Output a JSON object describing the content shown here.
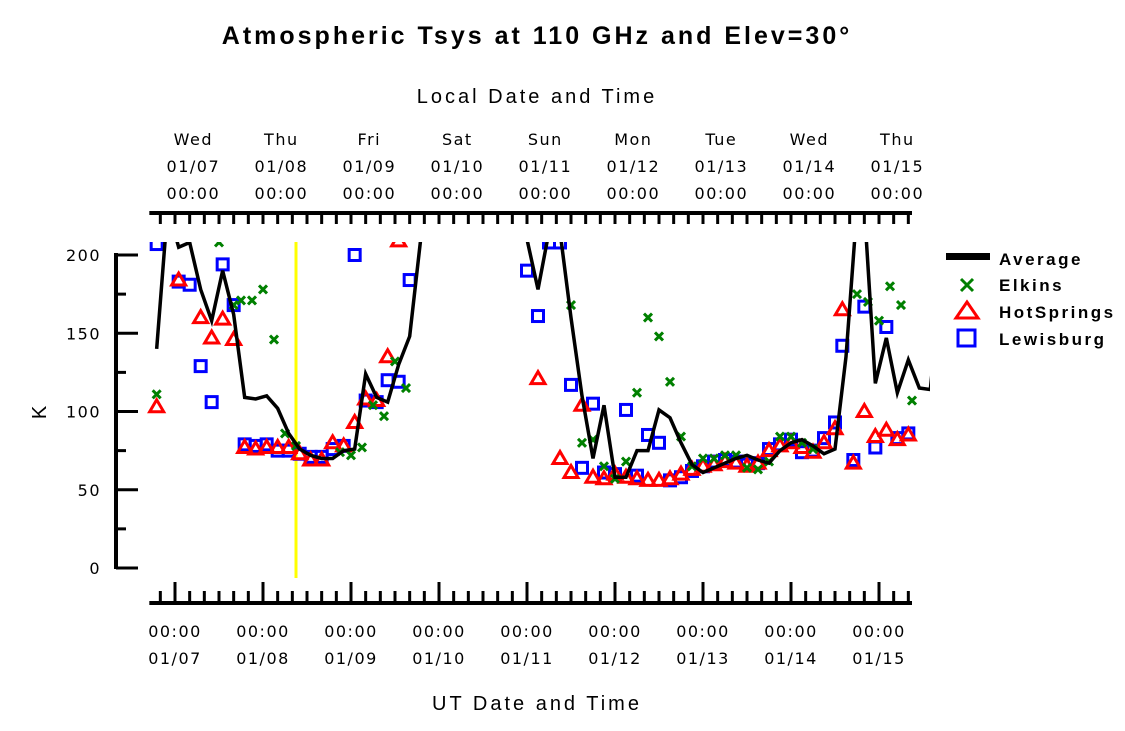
{
  "chart_data": {
    "type": "line",
    "title": "Atmospheric Tsys at 110 GHz and Elev=30°",
    "top_axis_label": "Local Date and Time",
    "xlabel": "UT Date and Time",
    "ylabel": "K",
    "ylim": [
      0,
      200
    ],
    "y_ticks": [
      "0",
      "50",
      "100",
      "150",
      "200"
    ],
    "x_unit": "hours since UT 01/07 00:00",
    "xlim": [
      -6,
      198
    ],
    "local_offset_hours": -5,
    "marker_time_hours": 33,
    "marker_color": "#ffff00",
    "top_ticks": [
      {
        "day": "Wed",
        "date": "01/07",
        "time": "00:00"
      },
      {
        "day": "Thu",
        "date": "01/08",
        "time": "00:00"
      },
      {
        "day": "Fri",
        "date": "01/09",
        "time": "00:00"
      },
      {
        "day": "Sat",
        "date": "01/10",
        "time": "00:00"
      },
      {
        "day": "Sun",
        "date": "01/11",
        "time": "00:00"
      },
      {
        "day": "Mon",
        "date": "01/12",
        "time": "00:00"
      },
      {
        "day": "Tue",
        "date": "01/13",
        "time": "00:00"
      },
      {
        "day": "Wed",
        "date": "01/14",
        "time": "00:00"
      },
      {
        "day": "Thu",
        "date": "01/15",
        "time": "00:00"
      }
    ],
    "bottom_ticks": [
      {
        "time": "00:00",
        "date": "01/07"
      },
      {
        "time": "00:00",
        "date": "01/08"
      },
      {
        "time": "00:00",
        "date": "01/09"
      },
      {
        "time": "00:00",
        "date": "01/10"
      },
      {
        "time": "00:00",
        "date": "01/11"
      },
      {
        "time": "00:00",
        "date": "01/12"
      },
      {
        "time": "00:00",
        "date": "01/13"
      },
      {
        "time": "00:00",
        "date": "01/14"
      },
      {
        "time": "00:00",
        "date": "01/15"
      }
    ],
    "legend_position": "right",
    "series": [
      {
        "name": "Average",
        "marker": "line",
        "color": "#000000",
        "points": [
          [
            -5,
            140
          ],
          [
            -2,
            230
          ],
          [
            1,
            205
          ],
          [
            4,
            208
          ],
          [
            7,
            178
          ],
          [
            10,
            158
          ],
          [
            13,
            190
          ],
          [
            16,
            162
          ],
          [
            19,
            109
          ],
          [
            22,
            108
          ],
          [
            25,
            110
          ],
          [
            28,
            102
          ],
          [
            31,
            86
          ],
          [
            34,
            76
          ],
          [
            37,
            72
          ],
          [
            40,
            70
          ],
          [
            43,
            70
          ],
          [
            46,
            75
          ],
          [
            49,
            76
          ],
          [
            52,
            124
          ],
          [
            55,
            109
          ],
          [
            58,
            106
          ],
          [
            61,
            130
          ],
          [
            64,
            148
          ],
          [
            67,
            210
          ],
          [
            96,
            210
          ],
          [
            99,
            178
          ],
          [
            102,
            215
          ],
          [
            105,
            215
          ],
          [
            108,
            160
          ],
          [
            111,
            110
          ],
          [
            114,
            70
          ],
          [
            117,
            104
          ],
          [
            120,
            58
          ],
          [
            123,
            58
          ],
          [
            126,
            75
          ],
          [
            129,
            75
          ],
          [
            132,
            101
          ],
          [
            135,
            96
          ],
          [
            138,
            80
          ],
          [
            141,
            66
          ],
          [
            144,
            61
          ],
          [
            147,
            64
          ],
          [
            150,
            67
          ],
          [
            153,
            70
          ],
          [
            156,
            72
          ],
          [
            159,
            69
          ],
          [
            162,
            67
          ],
          [
            165,
            75
          ],
          [
            168,
            80
          ],
          [
            171,
            82
          ],
          [
            174,
            78
          ],
          [
            177,
            73
          ],
          [
            180,
            76
          ],
          [
            183,
            135
          ],
          [
            186,
            230
          ],
          [
            188,
            230
          ],
          [
            191,
            118
          ],
          [
            194,
            147
          ],
          [
            197,
            112
          ],
          [
            200,
            133
          ],
          [
            203,
            115
          ],
          [
            206,
            114
          ],
          [
            209,
            185
          ]
        ]
      },
      {
        "name": "Elkins",
        "marker": "x",
        "color": "#008000",
        "points": [
          [
            -5,
            111
          ],
          [
            12,
            208
          ],
          [
            16,
            168
          ],
          [
            18,
            171
          ],
          [
            21,
            171
          ],
          [
            24,
            178
          ],
          [
            27,
            146
          ],
          [
            30,
            86
          ],
          [
            33,
            78
          ],
          [
            45,
            74
          ],
          [
            48,
            72
          ],
          [
            51,
            77
          ],
          [
            54,
            104
          ],
          [
            57,
            97
          ],
          [
            60,
            132
          ],
          [
            63,
            115
          ],
          [
            108,
            168
          ],
          [
            111,
            80
          ],
          [
            114,
            82
          ],
          [
            117,
            65
          ],
          [
            120,
            57
          ],
          [
            123,
            68
          ],
          [
            126,
            112
          ],
          [
            129,
            160
          ],
          [
            132,
            148
          ],
          [
            135,
            119
          ],
          [
            138,
            84
          ],
          [
            141,
            65
          ],
          [
            144,
            70
          ],
          [
            147,
            70
          ],
          [
            150,
            72
          ],
          [
            153,
            72
          ],
          [
            156,
            64
          ],
          [
            159,
            63
          ],
          [
            162,
            68
          ],
          [
            165,
            84
          ],
          [
            168,
            84
          ],
          [
            171,
            80
          ],
          [
            174,
            76
          ],
          [
            186,
            175
          ],
          [
            189,
            170
          ],
          [
            192,
            158
          ],
          [
            195,
            180
          ],
          [
            198,
            168
          ],
          [
            201,
            107
          ]
        ]
      },
      {
        "name": "HotSprings",
        "marker": "triangle",
        "color": "#ff0000",
        "points": [
          [
            -5,
            103
          ],
          [
            1,
            184
          ],
          [
            7,
            160
          ],
          [
            10,
            147
          ],
          [
            13,
            159
          ],
          [
            16,
            146
          ],
          [
            19,
            77
          ],
          [
            22,
            76
          ],
          [
            25,
            77
          ],
          [
            28,
            77
          ],
          [
            31,
            77
          ],
          [
            34,
            73
          ],
          [
            37,
            69
          ],
          [
            40,
            69
          ],
          [
            43,
            80
          ],
          [
            46,
            78
          ],
          [
            49,
            93
          ],
          [
            52,
            108
          ],
          [
            55,
            107
          ],
          [
            58,
            135
          ],
          [
            61,
            209
          ],
          [
            99,
            121
          ],
          [
            105,
            70
          ],
          [
            108,
            61
          ],
          [
            111,
            104
          ],
          [
            114,
            58
          ],
          [
            117,
            57
          ],
          [
            120,
            60
          ],
          [
            123,
            58
          ],
          [
            126,
            57
          ],
          [
            129,
            56
          ],
          [
            132,
            56
          ],
          [
            135,
            57
          ],
          [
            138,
            60
          ],
          [
            141,
            63
          ],
          [
            144,
            65
          ],
          [
            147,
            66
          ],
          [
            150,
            68
          ],
          [
            153,
            67
          ],
          [
            156,
            65
          ],
          [
            159,
            67
          ],
          [
            162,
            75
          ],
          [
            165,
            78
          ],
          [
            168,
            80
          ],
          [
            171,
            77
          ],
          [
            174,
            74
          ],
          [
            177,
            80
          ],
          [
            180,
            89
          ],
          [
            182,
            165
          ],
          [
            185,
            67
          ],
          [
            188,
            100
          ],
          [
            191,
            84
          ],
          [
            194,
            88
          ],
          [
            197,
            82
          ],
          [
            200,
            85
          ]
        ]
      },
      {
        "name": "Lewisburg",
        "marker": "square",
        "color": "#0000ff",
        "points": [
          [
            -5,
            207
          ],
          [
            1,
            183
          ],
          [
            4,
            181
          ],
          [
            7,
            129
          ],
          [
            10,
            106
          ],
          [
            13,
            194
          ],
          [
            16,
            168
          ],
          [
            19,
            79
          ],
          [
            22,
            78
          ],
          [
            25,
            79
          ],
          [
            28,
            75
          ],
          [
            31,
            75
          ],
          [
            34,
            73
          ],
          [
            37,
            71
          ],
          [
            40,
            71
          ],
          [
            43,
            76
          ],
          [
            46,
            78
          ],
          [
            49,
            200
          ],
          [
            52,
            107
          ],
          [
            55,
            106
          ],
          [
            58,
            120
          ],
          [
            61,
            119
          ],
          [
            64,
            184
          ],
          [
            96,
            190
          ],
          [
            99,
            161
          ],
          [
            102,
            208
          ],
          [
            105,
            208
          ],
          [
            108,
            117
          ],
          [
            111,
            64
          ],
          [
            114,
            105
          ],
          [
            117,
            61
          ],
          [
            120,
            60
          ],
          [
            123,
            101
          ],
          [
            126,
            59
          ],
          [
            129,
            85
          ],
          [
            132,
            80
          ],
          [
            135,
            56
          ],
          [
            138,
            58
          ],
          [
            141,
            62
          ],
          [
            144,
            65
          ],
          [
            147,
            68
          ],
          [
            150,
            69
          ],
          [
            153,
            68
          ],
          [
            156,
            66
          ],
          [
            159,
            67
          ],
          [
            162,
            76
          ],
          [
            165,
            79
          ],
          [
            168,
            82
          ],
          [
            171,
            74
          ],
          [
            174,
            75
          ],
          [
            177,
            83
          ],
          [
            180,
            93
          ],
          [
            182,
            142
          ],
          [
            185,
            69
          ],
          [
            188,
            167
          ],
          [
            191,
            77
          ],
          [
            194,
            154
          ],
          [
            197,
            83
          ],
          [
            200,
            86
          ]
        ]
      }
    ]
  }
}
